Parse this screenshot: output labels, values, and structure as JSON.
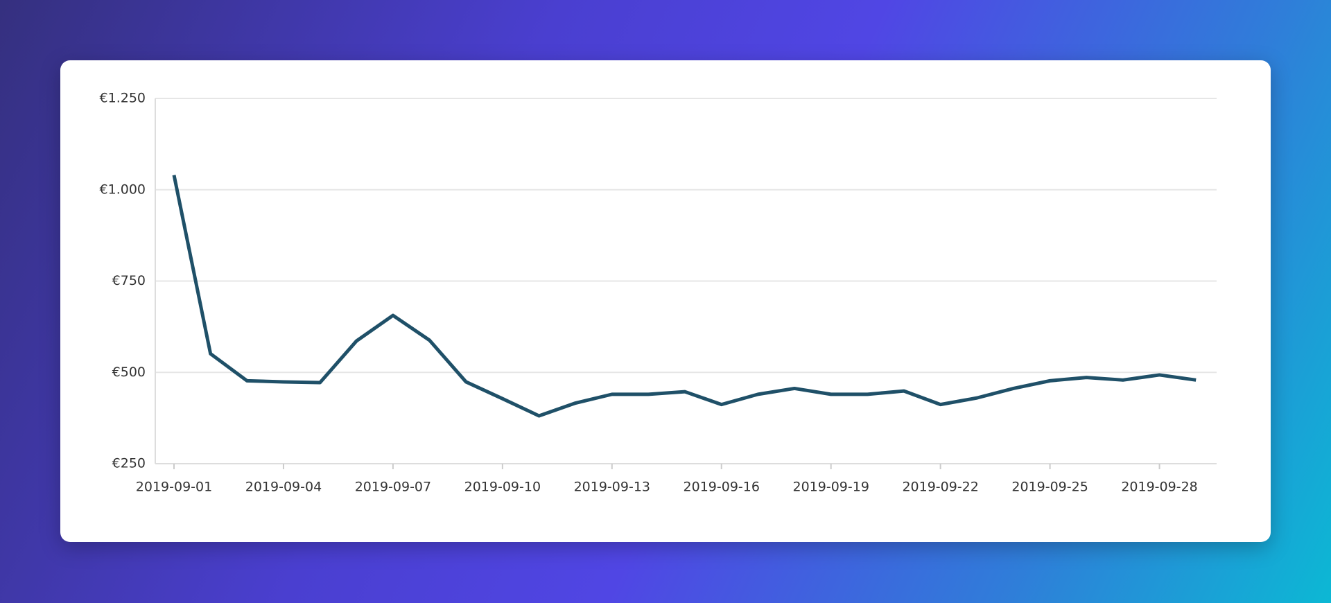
{
  "chart_data": {
    "type": "line",
    "categories": [
      "2019-09-01",
      null,
      null,
      "2019-09-04",
      null,
      null,
      "2019-09-07",
      null,
      null,
      "2019-09-10",
      null,
      null,
      "2019-09-13",
      null,
      null,
      "2019-09-16",
      null,
      null,
      "2019-09-19",
      null,
      null,
      "2019-09-22",
      null,
      null,
      "2019-09-25",
      null,
      null,
      "2019-09-28",
      null
    ],
    "values": [
      1040,
      551,
      477,
      474,
      472,
      586,
      656,
      588,
      474,
      428,
      381,
      416,
      440,
      440,
      447,
      412,
      440,
      456,
      440,
      440,
      449,
      412,
      430,
      456,
      477,
      486,
      479,
      493,
      479
    ],
    "color": "#1f5068",
    "ylim": [
      250,
      1250
    ],
    "yticks": [
      {
        "value": 250,
        "label": "€250"
      },
      {
        "value": 500,
        "label": "€500"
      },
      {
        "value": 750,
        "label": "€750"
      },
      {
        "value": 1000,
        "label": "€1.000"
      },
      {
        "value": 1250,
        "label": "€1.250"
      }
    ],
    "grid": true
  }
}
